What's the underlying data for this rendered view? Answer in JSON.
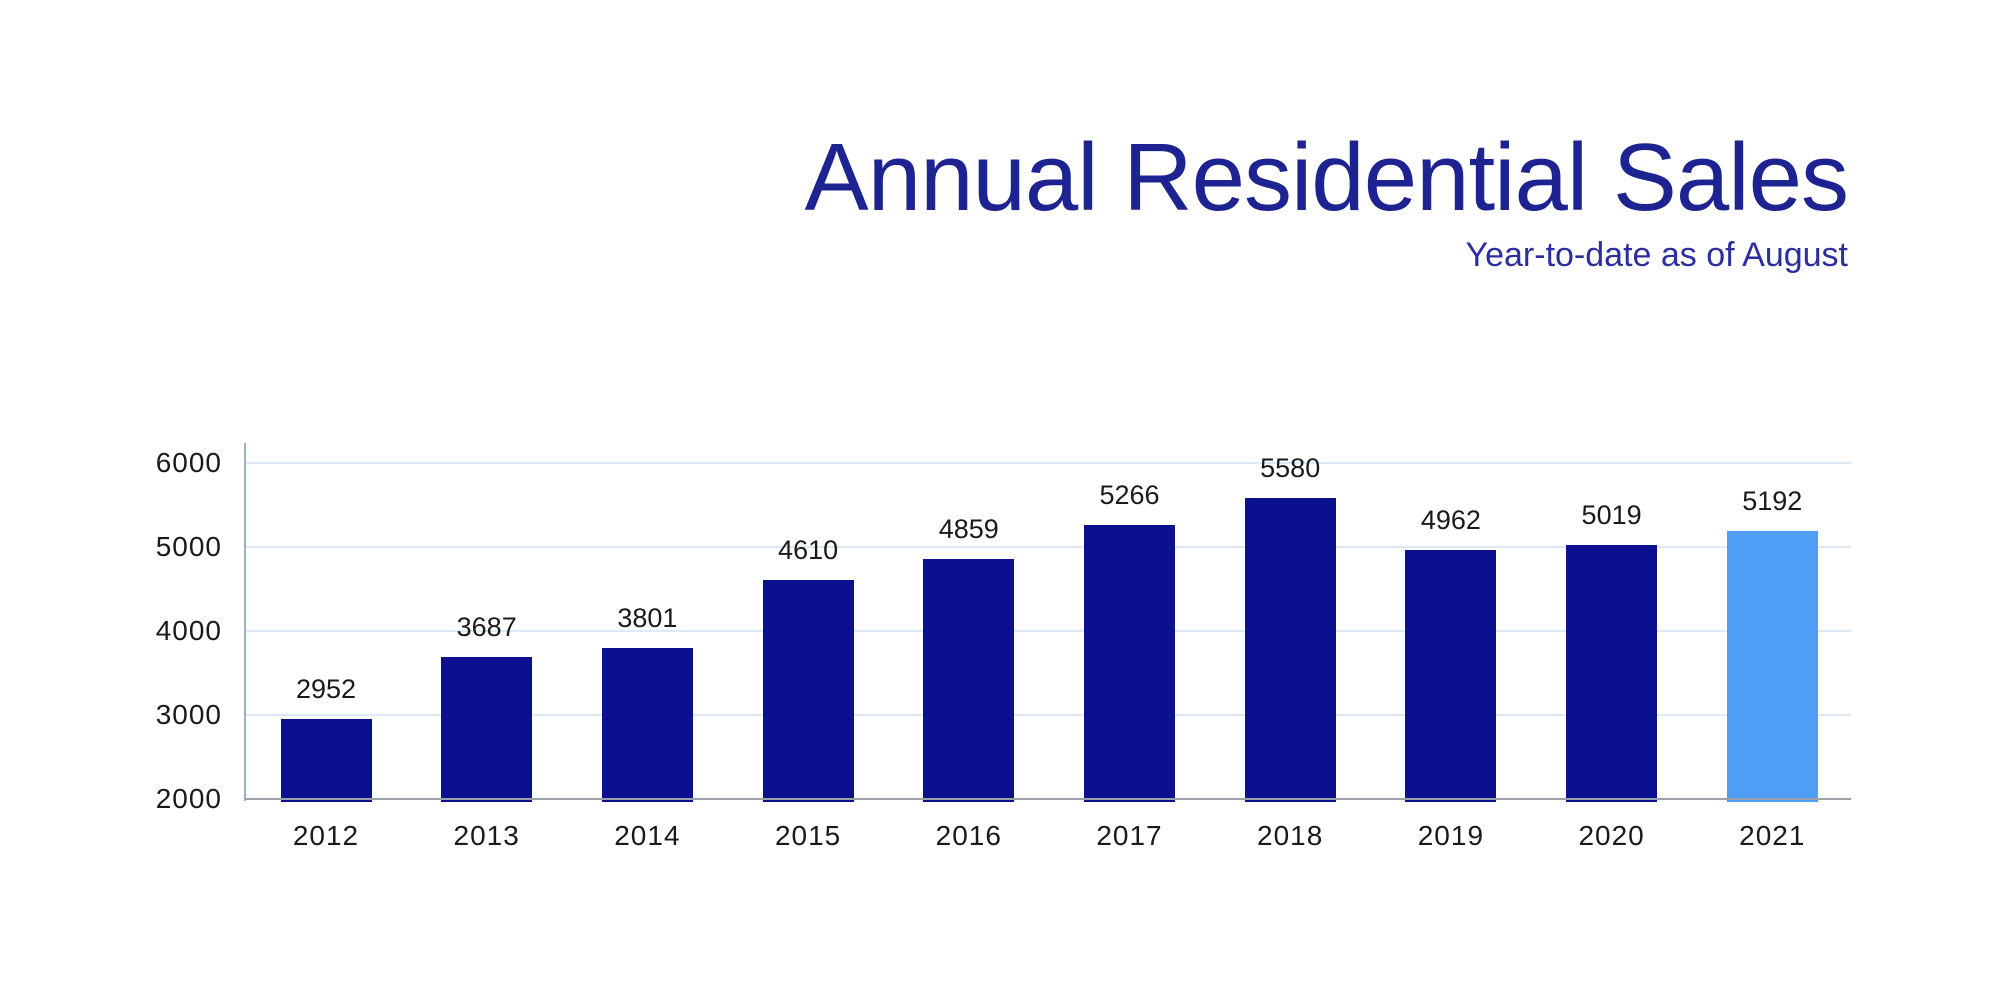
{
  "page": {
    "background_color": "#ffffff"
  },
  "header": {
    "title": "Annual Residential Sales",
    "subtitle": "Year-to-date as of August",
    "title_color": "#1d2390",
    "subtitle_color": "#2b2f9d"
  },
  "chart_data": {
    "type": "bar",
    "title": "Annual Residential Sales",
    "subtitle": "Year-to-date as of August",
    "categories": [
      "2012",
      "2013",
      "2014",
      "2015",
      "2016",
      "2017",
      "2018",
      "2019",
      "2020",
      "2021"
    ],
    "values": [
      2952,
      3687,
      3801,
      4610,
      4859,
      5266,
      5580,
      4962,
      5019,
      5192
    ],
    "data_labels_shown": true,
    "highlight_index": 9,
    "bar_color_default": "#0b108e",
    "bar_color_highlight": "#4f9ef5",
    "ylim": [
      2000,
      6000
    ],
    "yticks": [
      6000,
      5000,
      4000,
      3000,
      2000
    ],
    "ytick_labels": [
      "6000",
      "5000",
      "4000",
      "3000",
      "2000"
    ],
    "grid": true,
    "gridline_color": "#dde9f6",
    "baseline_color": "#9aa1aa",
    "axis_line_color": "#9cb0be",
    "label_color": "#1a1a1a",
    "xlabel": "",
    "ylabel": "",
    "legend": "none"
  }
}
